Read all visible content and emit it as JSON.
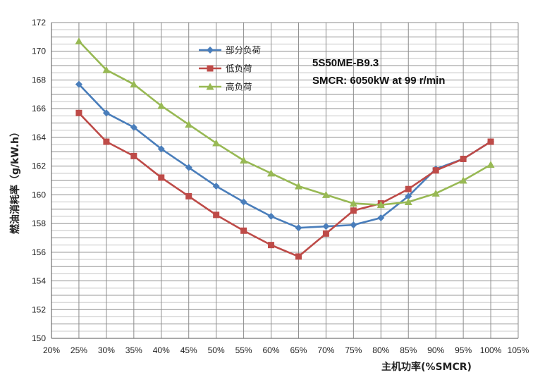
{
  "chart_data": {
    "type": "line",
    "title": "",
    "xlabel": "主机功率(%SMCR)",
    "ylabel": "燃油消耗率（g/kW.h）",
    "xlim": [
      20,
      105
    ],
    "ylim": [
      150,
      172
    ],
    "x_ticks": [
      "20%",
      "25%",
      "30%",
      "35%",
      "40%",
      "45%",
      "50%",
      "55%",
      "60%",
      "65%",
      "70%",
      "75%",
      "80%",
      "85%",
      "90%",
      "95%",
      "100%",
      "105%"
    ],
    "y_ticks": [
      "150",
      "152",
      "154",
      "156",
      "158",
      "160",
      "162",
      "164",
      "166",
      "168",
      "170",
      "172"
    ],
    "x": [
      25,
      30,
      35,
      40,
      45,
      50,
      55,
      60,
      65,
      70,
      75,
      80,
      85,
      90,
      95,
      100
    ],
    "series": [
      {
        "name": "部分负荷",
        "color": "#4a7ebb",
        "marker": "diamond",
        "values": [
          167.7,
          165.7,
          164.7,
          163.2,
          161.9,
          160.6,
          159.5,
          158.5,
          157.7,
          157.8,
          157.9,
          158.4,
          159.9,
          161.8,
          162.5,
          163.7
        ]
      },
      {
        "name": "低负荷",
        "color": "#be4b48",
        "marker": "square",
        "values": [
          165.7,
          163.7,
          162.7,
          161.2,
          159.9,
          158.6,
          157.5,
          156.5,
          155.7,
          157.3,
          158.9,
          159.4,
          160.4,
          161.7,
          162.5,
          163.7
        ]
      },
      {
        "name": "高负荷",
        "color": "#98b954",
        "marker": "triangle",
        "values": [
          170.7,
          168.7,
          167.7,
          166.2,
          164.9,
          163.6,
          162.4,
          161.5,
          160.6,
          160.0,
          159.4,
          159.3,
          159.5,
          160.1,
          161.0,
          162.1
        ]
      }
    ],
    "legend_position": "top-center",
    "grid": true,
    "annotations": [
      "5S50ME-B9.3",
      "SMCR: 6050kW at 99 r/min"
    ]
  }
}
